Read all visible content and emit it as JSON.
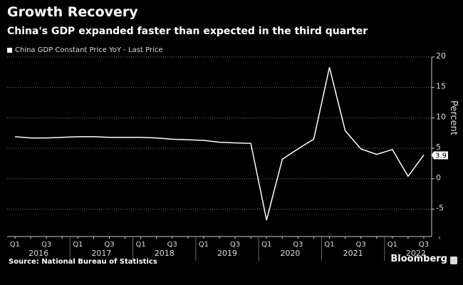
{
  "header": {
    "title": "Growth Recovery",
    "subtitle": "China's GDP expanded faster than expected in the third quarter"
  },
  "footer": {
    "source": "Source: National Bureau of Statistics",
    "brand": "Bloomberg"
  },
  "chart_data": {
    "type": "line",
    "title": "Growth Recovery",
    "subtitle": "China's GDP expanded faster than expected in the third quarter",
    "ylabel": "Percent",
    "ylim": [
      -9.5,
      20
    ],
    "yticks": [
      -5,
      0,
      5,
      10,
      15,
      20
    ],
    "grid": true,
    "legend": "top-left",
    "series": [
      {
        "name": "China GDP Constant Price YoY - Last Price",
        "color": "#ffffff",
        "values": [
          6.9,
          6.7,
          6.7,
          6.8,
          6.9,
          6.9,
          6.8,
          6.8,
          6.8,
          6.7,
          6.5,
          6.4,
          6.3,
          6.0,
          5.9,
          5.8,
          -6.8,
          3.2,
          4.9,
          6.5,
          18.3,
          7.9,
          4.9,
          4.0,
          4.8,
          0.4,
          3.9
        ]
      }
    ],
    "years": [
      "2016",
      "2017",
      "2018",
      "2019",
      "2020",
      "2021",
      "2022"
    ],
    "quarter_labels": [
      "Q1",
      "Q3"
    ],
    "last_value_label": "3.9"
  }
}
